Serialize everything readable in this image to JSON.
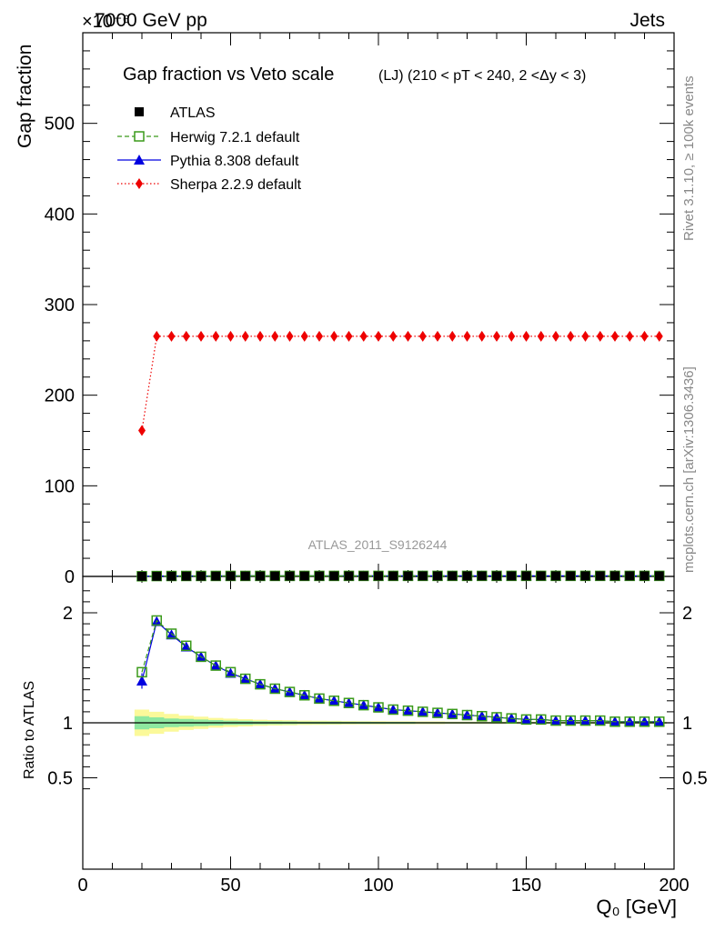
{
  "header": {
    "energy": "7000 GeV pp",
    "process": "Jets",
    "scale_exponent": "×10⁻⁶"
  },
  "side_labels": {
    "rivet": "Rivet 3.1.10, ≥ 100k events",
    "source": "mcplots.cern.ch [arXiv:1306.3436]"
  },
  "chart_data": [
    {
      "type": "line",
      "title": "Gap fraction vs Veto scale",
      "subtitle": "(LJ) (210 < pT < 240, 2 <Δy < 3)",
      "watermark": "ATLAS_2011_S9126244",
      "xlabel": "Q₀ [GeV]",
      "ylabel": "Gap fraction",
      "xlim": [
        0,
        200
      ],
      "ylim": [
        0,
        600
      ],
      "y_scale_factor": "1e-6",
      "xticks": [
        0,
        50,
        100,
        150,
        200
      ],
      "yticks": [
        0,
        100,
        200,
        300,
        400,
        500
      ],
      "legend_position": "top-left",
      "x": [
        20,
        25,
        30,
        35,
        40,
        45,
        50,
        55,
        60,
        65,
        70,
        75,
        80,
        85,
        90,
        95,
        100,
        105,
        110,
        115,
        120,
        125,
        130,
        135,
        140,
        145,
        150,
        155,
        160,
        165,
        170,
        175,
        180,
        185,
        190,
        195
      ],
      "series": [
        {
          "name": "ATLAS",
          "color": "#000000",
          "marker": "square-filled",
          "line": "none",
          "values": [
            0.13,
            0.22,
            0.27,
            0.31,
            0.34,
            0.37,
            0.39,
            0.41,
            0.43,
            0.45,
            0.46,
            0.47,
            0.48,
            0.49,
            0.5,
            0.51,
            0.52,
            0.52,
            0.53,
            0.54,
            0.54,
            0.55,
            0.55,
            0.56,
            0.56,
            0.56,
            0.57,
            0.57,
            0.57,
            0.58,
            0.58,
            0.58,
            0.58,
            0.59,
            0.59,
            0.59
          ]
        },
        {
          "name": "Herwig 7.2.1 default",
          "color": "#3a9a1a",
          "marker": "square-open",
          "line": "dashed",
          "values": [
            0.19,
            0.42,
            0.49,
            0.52,
            0.54,
            0.55,
            0.56,
            0.57,
            0.58,
            0.59,
            0.59,
            0.6,
            0.6,
            0.6,
            0.61,
            0.61,
            0.61,
            0.61,
            0.62,
            0.62,
            0.62,
            0.62,
            0.62,
            0.62,
            0.62,
            0.63,
            0.63,
            0.63,
            0.63,
            0.63,
            0.63,
            0.63,
            0.63,
            0.63,
            0.63,
            0.63
          ]
        },
        {
          "name": "Pythia 8.308 default",
          "color": "#0000e0",
          "marker": "triangle-filled",
          "line": "solid",
          "values": [
            0.18,
            0.42,
            0.49,
            0.52,
            0.54,
            0.55,
            0.56,
            0.57,
            0.58,
            0.59,
            0.59,
            0.6,
            0.6,
            0.6,
            0.61,
            0.61,
            0.61,
            0.61,
            0.62,
            0.62,
            0.62,
            0.62,
            0.62,
            0.62,
            0.62,
            0.63,
            0.63,
            0.63,
            0.63,
            0.63,
            0.63,
            0.63,
            0.63,
            0.63,
            0.63,
            0.63
          ]
        },
        {
          "name": "Sherpa 2.2.9 default",
          "color": "#ee0000",
          "marker": "diamond-filled",
          "line": "dotted",
          "values": [
            161,
            265,
            265,
            265,
            265,
            265,
            265,
            265,
            265,
            265,
            265,
            265,
            265,
            265,
            265,
            265,
            265,
            265,
            265,
            265,
            265,
            265,
            265,
            265,
            265,
            265,
            265,
            265,
            265,
            265,
            265,
            265,
            265,
            265,
            265,
            265
          ]
        }
      ]
    },
    {
      "type": "line",
      "xlabel": "Q₀ [GeV]",
      "ylabel": "Ratio to ATLAS",
      "xlim": [
        0,
        200
      ],
      "ylim": [
        0.35,
        2.3
      ],
      "xticks": [
        0,
        50,
        100,
        150,
        200
      ],
      "yticks": [
        0.5,
        1,
        2
      ],
      "ytick_labels": [
        "0.5",
        "1",
        "2"
      ],
      "reference_line": 1,
      "band_inner_halfwidth": [
        0.06,
        0.05,
        0.04,
        0.035,
        0.03,
        0.025,
        0.02,
        0.018,
        0.015,
        0.013,
        0.012,
        0.011,
        0.01,
        0.01,
        0.009,
        0.009,
        0.008,
        0.008,
        0.008,
        0.007,
        0.007,
        0.007,
        0.007,
        0.006,
        0.006,
        0.006,
        0.006,
        0.006,
        0.006,
        0.006,
        0.006,
        0.006,
        0.006,
        0.006,
        0.006,
        0.006
      ],
      "band_outer_halfwidth": [
        0.12,
        0.1,
        0.08,
        0.065,
        0.055,
        0.045,
        0.038,
        0.033,
        0.028,
        0.025,
        0.022,
        0.02,
        0.018,
        0.017,
        0.016,
        0.015,
        0.014,
        0.013,
        0.013,
        0.012,
        0.012,
        0.011,
        0.011,
        0.011,
        0.01,
        0.01,
        0.01,
        0.01,
        0.01,
        0.01,
        0.01,
        0.01,
        0.01,
        0.01,
        0.01,
        0.01
      ],
      "x": [
        20,
        25,
        30,
        35,
        40,
        45,
        50,
        55,
        60,
        65,
        70,
        75,
        80,
        85,
        90,
        95,
        100,
        105,
        110,
        115,
        120,
        125,
        130,
        135,
        140,
        145,
        150,
        155,
        160,
        165,
        170,
        175,
        180,
        185,
        190,
        195
      ],
      "series": [
        {
          "name": "Herwig 7.2.1 default",
          "color": "#3a9a1a",
          "marker": "square-open",
          "line": "dashed",
          "values": [
            1.46,
            1.93,
            1.81,
            1.7,
            1.6,
            1.52,
            1.46,
            1.4,
            1.35,
            1.31,
            1.28,
            1.25,
            1.22,
            1.2,
            1.18,
            1.16,
            1.14,
            1.12,
            1.11,
            1.1,
            1.09,
            1.08,
            1.07,
            1.06,
            1.05,
            1.04,
            1.03,
            1.03,
            1.02,
            1.02,
            1.02,
            1.02,
            1.01,
            1.01,
            1.01,
            1.01
          ]
        },
        {
          "name": "Pythia 8.308 default",
          "color": "#0000e0",
          "marker": "triangle-filled",
          "line": "solid",
          "values": [
            1.38,
            1.92,
            1.8,
            1.69,
            1.6,
            1.52,
            1.45,
            1.4,
            1.35,
            1.31,
            1.28,
            1.25,
            1.22,
            1.2,
            1.18,
            1.16,
            1.14,
            1.12,
            1.11,
            1.1,
            1.09,
            1.08,
            1.07,
            1.06,
            1.05,
            1.04,
            1.03,
            1.03,
            1.02,
            1.02,
            1.02,
            1.02,
            1.01,
            1.01,
            1.01,
            1.01
          ],
          "errors": [
            0.07,
            0.02,
            0.015,
            0.01,
            0.01,
            0.01,
            0.01,
            0.01,
            0.01,
            0.01,
            0.01,
            0.01,
            0.01,
            0.01,
            0.01,
            0.01,
            0.01,
            0.01,
            0.01,
            0.01,
            0.01,
            0.01,
            0.01,
            0.01,
            0.01,
            0.01,
            0.01,
            0.01,
            0.01,
            0.01,
            0.01,
            0.01,
            0.01,
            0.01,
            0.01,
            0.01
          ]
        }
      ]
    }
  ]
}
